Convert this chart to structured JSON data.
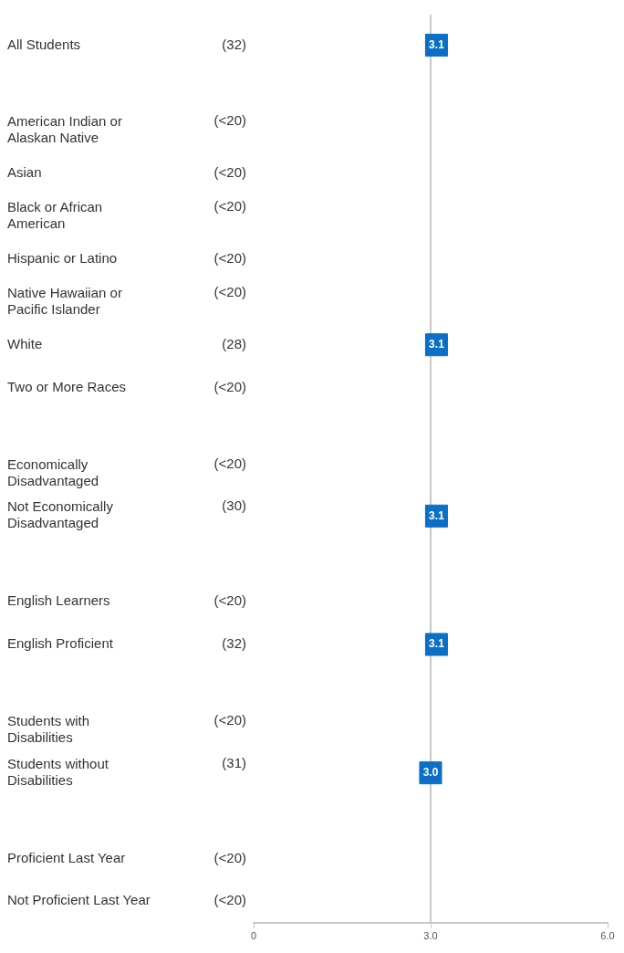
{
  "chart_data": {
    "type": "scatter",
    "orientation": "horizontal",
    "categories": [
      "All Students",
      null,
      "American Indian or Alaskan Native",
      "Asian",
      "Black or African American",
      "Hispanic or Latino",
      "Native Hawaiian or Pacific Islander",
      "White",
      "Two or More Races",
      null,
      "Economically Disadvantaged",
      "Not Economically Disadvantaged",
      null,
      "English Learners",
      "English Proficient",
      null,
      "Students with Disabilities",
      "Students without Disabilities",
      null,
      "Proficient Last Year",
      "Not Proficient Last Year"
    ],
    "values": [
      3.1,
      null,
      null,
      null,
      null,
      null,
      null,
      3.1,
      null,
      null,
      null,
      3.1,
      null,
      null,
      3.1,
      null,
      null,
      3.0,
      null,
      null,
      null
    ],
    "value_labels": [
      "3.1",
      null,
      null,
      null,
      null,
      null,
      null,
      "3.1",
      null,
      null,
      null,
      "3.1",
      null,
      null,
      "3.1",
      null,
      null,
      "3.0",
      null,
      null,
      null
    ],
    "color": "#0b6fc5",
    "marker": "square",
    "xlim": [
      0,
      6
    ],
    "xticks": [
      0,
      {
        "value": 3,
        "label": "3.0"
      },
      {
        "value": 6,
        "label": "6.0"
      }
    ],
    "grid": false,
    "legend": false,
    "ref_lines": [
      {
        "axis": "x",
        "value": 3,
        "color": "#c8c8c8",
        "line_style": "solid"
      }
    ],
    "annotations": [
      "(32)",
      "(<20)",
      "(<20)",
      "(<20)",
      "(<20)",
      "(<20)",
      "(28)",
      "(<20)",
      "(<20)",
      "(30)",
      "(<20)",
      "(32)",
      "(<20)",
      "(31)",
      "(<20)",
      "(<20)"
    ]
  }
}
